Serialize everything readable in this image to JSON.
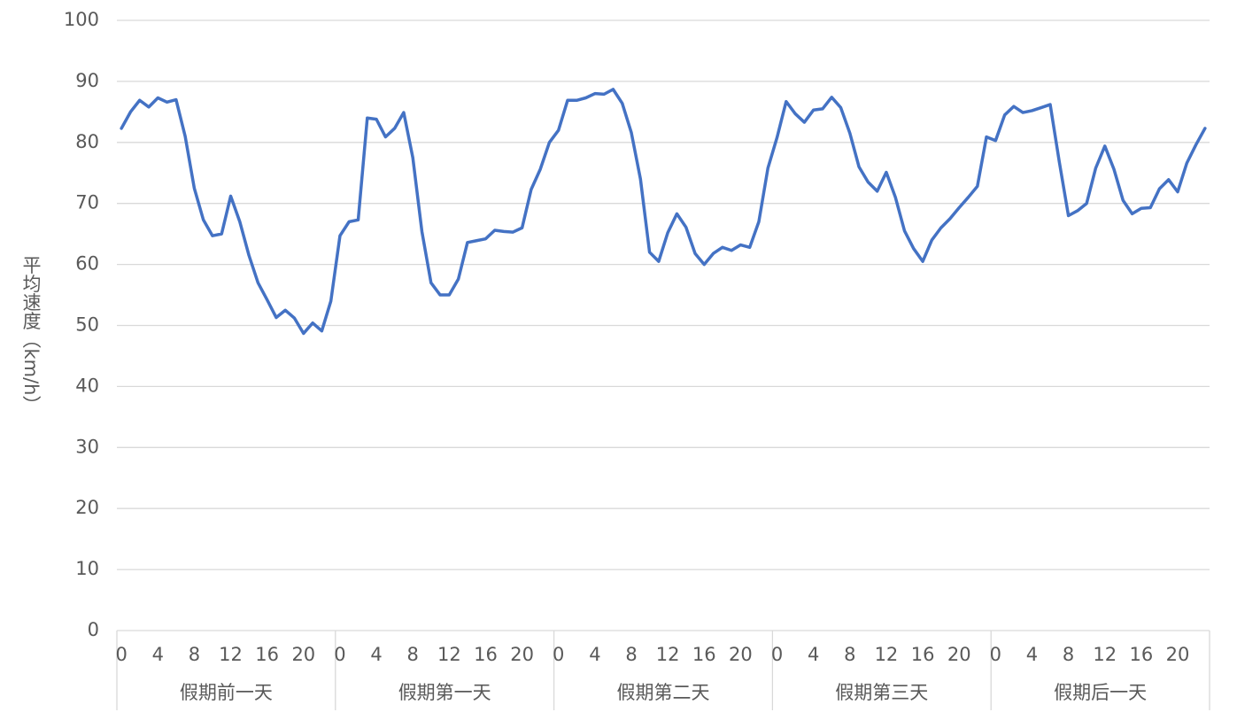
{
  "chart_data": {
    "type": "line",
    "y_label": "平均速度（km/h）",
    "color": "#4472c4",
    "grid": true,
    "ylim": [
      0,
      100
    ],
    "yticks": [
      0,
      10,
      20,
      30,
      40,
      50,
      60,
      70,
      80,
      90,
      100
    ],
    "groups": [
      {
        "label": "假期前一天",
        "categories": [
          "0",
          null,
          null,
          null,
          "4",
          null,
          null,
          null,
          "8",
          null,
          null,
          null,
          "12",
          null,
          null,
          null,
          "16",
          null,
          null,
          null,
          "20",
          null,
          null,
          null
        ]
      },
      {
        "label": "假期第一天",
        "categories": [
          "0",
          null,
          null,
          null,
          "4",
          null,
          null,
          null,
          "8",
          null,
          null,
          null,
          "12",
          null,
          null,
          null,
          "16",
          null,
          null,
          null,
          "20",
          null,
          null,
          null
        ]
      },
      {
        "label": "假期第二天",
        "categories": [
          "0",
          null,
          null,
          null,
          "4",
          null,
          null,
          null,
          "8",
          null,
          null,
          null,
          "12",
          null,
          null,
          null,
          "16",
          null,
          null,
          null,
          "20",
          null,
          null,
          null
        ]
      },
      {
        "label": "假期第三天",
        "categories": [
          "0",
          null,
          null,
          null,
          "4",
          null,
          null,
          null,
          "8",
          null,
          null,
          null,
          "12",
          null,
          null,
          null,
          "16",
          null,
          null,
          null,
          "20",
          null,
          null,
          null
        ]
      },
      {
        "label": "假期后一天",
        "categories": [
          "0",
          null,
          null,
          null,
          "4",
          null,
          null,
          null,
          "8",
          null,
          null,
          null,
          "12",
          null,
          null,
          null,
          "16",
          null,
          null,
          null,
          "20",
          null,
          null,
          null
        ]
      }
    ],
    "values": [
      82.3,
      85,
      86.9,
      85.8,
      87.3,
      86.6,
      87,
      81,
      72.5,
      67.3,
      64.7,
      65,
      71.2,
      67,
      61.5,
      57,
      54.2,
      51.3,
      52.5,
      51.2,
      48.7,
      50.4,
      49.1,
      54,
      64.7,
      67,
      67.3,
      84,
      83.8,
      80.9,
      82.3,
      84.9,
      77.5,
      65.4,
      57,
      55,
      55,
      57.6,
      63.6,
      63.9,
      64.2,
      65.6,
      65.4,
      65.3,
      66,
      72.3,
      75.6,
      80,
      82,
      86.9,
      86.9,
      87.3,
      88,
      87.9,
      88.7,
      86.4,
      81.6,
      74,
      62,
      60.5,
      65.2,
      68.3,
      66.1,
      61.8,
      60,
      61.8,
      62.8,
      62.3,
      63.2,
      62.8,
      67,
      75.8,
      80.8,
      86.7,
      84.7,
      83.3,
      85.3,
      85.5,
      87.4,
      85.7,
      81.5,
      76,
      73.5,
      72,
      75.1,
      71,
      65.5,
      62.6,
      60.5,
      64,
      66,
      67.5,
      69.3,
      71,
      72.8,
      80.9,
      80.3,
      84.5,
      85.9,
      84.9,
      85.2,
      85.7,
      86.2,
      76.8,
      68,
      68.8,
      70,
      75.8,
      79.4,
      75.6,
      70.5,
      68.3,
      69.2,
      69.3,
      72.4,
      73.9,
      71.9,
      76.6,
      79.6,
      82.3
    ]
  }
}
